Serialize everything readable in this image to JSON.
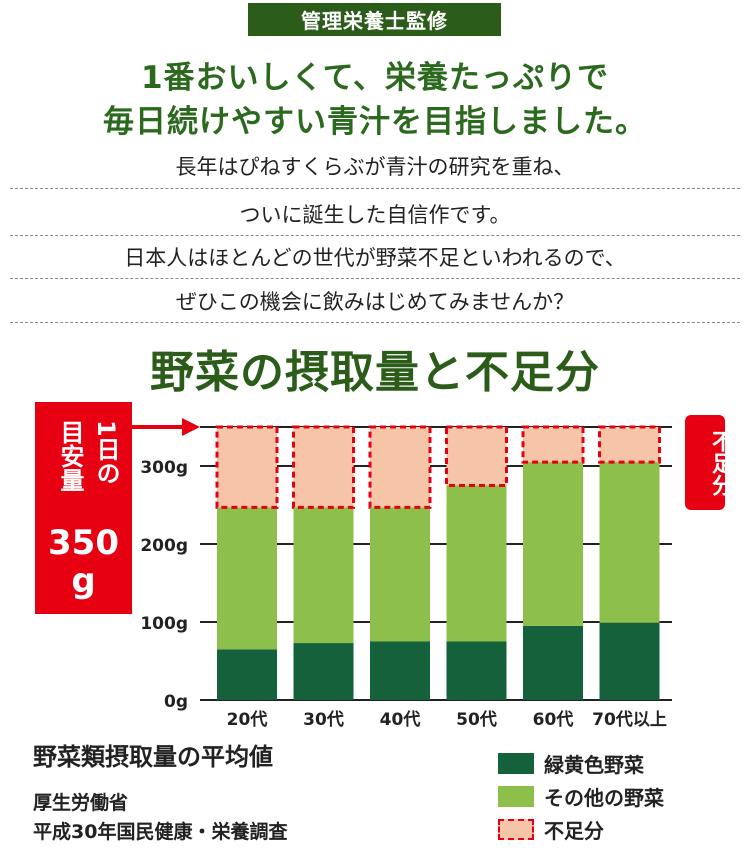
{
  "header": {
    "badge": "管理栄養士監修",
    "headline_line1": "1番おいしくて、栄養たっぷりで",
    "headline_line2": "毎日続けやすい青汁を目指しました。",
    "body_lines": [
      "長年はぴねすくらぶが青汁の研究を重ね、",
      "ついに誕生した自信作です。",
      "日本人はほとんどの世代が野菜不足といわれるので、",
      "ぜひこの機会に飲みはじめてみませんか？"
    ]
  },
  "section_title": "野菜の摂取量と不足分",
  "target_label": {
    "line1": "1日の",
    "line2": "目安量",
    "value": "350",
    "unit": "g"
  },
  "shortfall_label": "不足分",
  "source": {
    "title": "野菜類摂取量の平均値",
    "line1": "厚生労働省",
    "line2": "平成30年国民健康・栄養調査"
  },
  "colors": {
    "green_yellow": "#14613c",
    "other": "#8cc04b",
    "shortfall_fill": "#f6c4a6",
    "shortfall_border": "#e60012",
    "accent_red": "#e60012",
    "title_green": "#2b5c1a"
  },
  "chart_data": {
    "type": "bar",
    "stacked": true,
    "categories": [
      "20代",
      "30代",
      "40代",
      "50代",
      "60代",
      "70代以上"
    ],
    "series": [
      {
        "name": "緑黄色野菜",
        "values": [
          65,
          73,
          75,
          75,
          95,
          99
        ]
      },
      {
        "name": "その他の野菜",
        "values": [
          182,
          174,
          172,
          200,
          210,
          206
        ]
      },
      {
        "name": "不足分",
        "values": [
          103,
          103,
          103,
          75,
          45,
          45
        ]
      }
    ],
    "ylim": [
      0,
      350
    ],
    "yticks": [
      {
        "value": 0,
        "label": "0g"
      },
      {
        "value": 100,
        "label": "100g"
      },
      {
        "value": 200,
        "label": "200g"
      },
      {
        "value": 300,
        "label": "300g"
      }
    ],
    "target": 350,
    "grid": true,
    "legend_position": "bottom-right"
  }
}
